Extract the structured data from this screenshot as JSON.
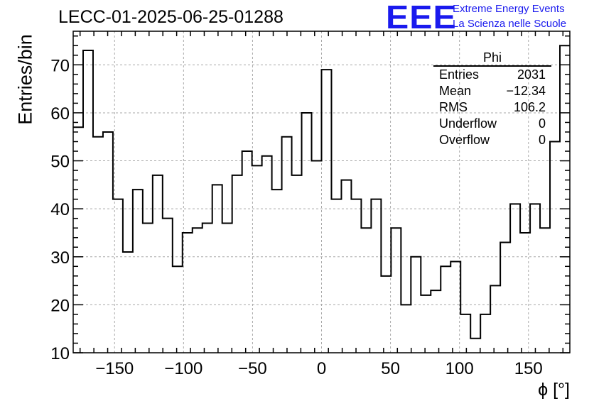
{
  "chart_data": {
    "type": "histogram",
    "title": "LECC-01-2025-06-25-01288",
    "xlabel": "ϕ [°]",
    "ylabel": "Entries/bin",
    "xlim": [
      -180,
      180
    ],
    "ylim": [
      10,
      77
    ],
    "x_ticks": [
      -150,
      -100,
      -50,
      0,
      50,
      100,
      150
    ],
    "x_tick_labels": [
      "−150",
      "−100",
      "−50",
      "0",
      "50",
      "100",
      "150"
    ],
    "y_ticks": [
      10,
      20,
      30,
      40,
      50,
      60,
      70
    ],
    "grid": true,
    "bin_width": 7.2,
    "values": [
      57,
      73,
      55,
      56,
      42,
      31,
      44,
      37,
      47,
      38,
      28,
      35,
      36,
      37,
      45,
      37,
      47,
      52,
      49,
      51,
      44,
      55,
      47,
      60,
      50,
      69,
      42,
      46,
      42,
      36,
      42,
      26,
      36,
      20,
      30,
      22,
      23,
      28,
      29,
      18,
      13,
      18,
      24,
      33,
      41,
      35,
      41,
      36,
      54,
      74
    ],
    "stats_box": {
      "name": "Phi",
      "entries_label": "Entries",
      "entries": "2031",
      "mean_label": "Mean",
      "mean": "−12.34",
      "rms_label": "RMS",
      "rms": "106.2",
      "underflow_label": "Underflow",
      "underflow": "0",
      "overflow_label": "Overflow",
      "overflow": "0"
    }
  },
  "logo": {
    "mark": "EEE",
    "line1": "Extreme Energy Events",
    "line2": "La Scienza nelle Scuole",
    "color": "#1a1aee"
  }
}
